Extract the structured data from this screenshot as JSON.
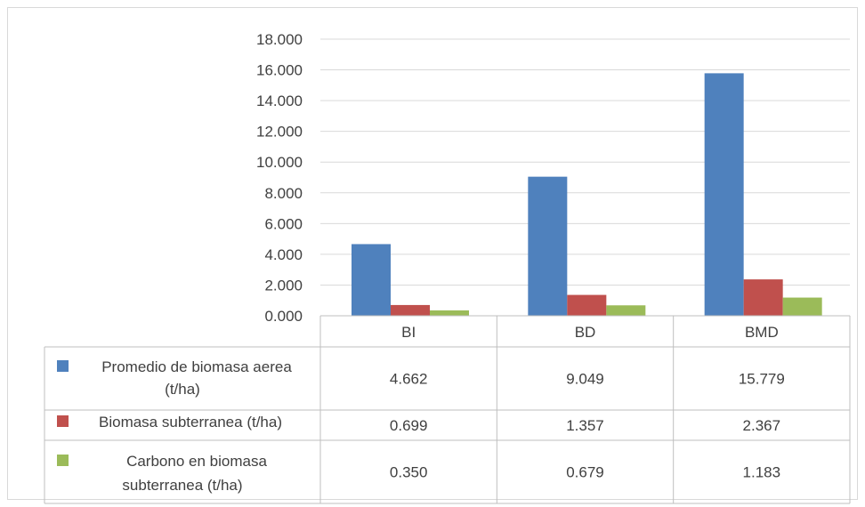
{
  "chart_data": {
    "type": "bar",
    "categories": [
      "BI",
      "BD",
      "BMD"
    ],
    "series": [
      {
        "name": "Promedio de biomasa aerea (t/ha)",
        "values": [
          4.662,
          9.049,
          15.779
        ],
        "display": [
          "4.662",
          "9.049",
          "15.779"
        ],
        "color": "#4F81BD"
      },
      {
        "name": "Biomasa subterranea (t/ha)",
        "values": [
          0.699,
          1.357,
          2.367
        ],
        "display": [
          "0.699",
          "1.357",
          "2.367"
        ],
        "color": "#C0504D"
      },
      {
        "name": "Carbono en biomasa subterranea (t/ha)",
        "values": [
          0.35,
          0.679,
          1.183
        ],
        "display": [
          "0.350",
          "0.679",
          "1.183"
        ],
        "color": "#9BBB59"
      }
    ],
    "yticks": [
      "0.000",
      "2.000",
      "4.000",
      "6.000",
      "8.000",
      "10.000",
      "12.000",
      "14.000",
      "16.000",
      "18.000"
    ],
    "ylim": [
      0,
      18
    ],
    "grid": true,
    "legend": "data-table",
    "title": "",
    "xlabel": "",
    "ylabel": ""
  }
}
